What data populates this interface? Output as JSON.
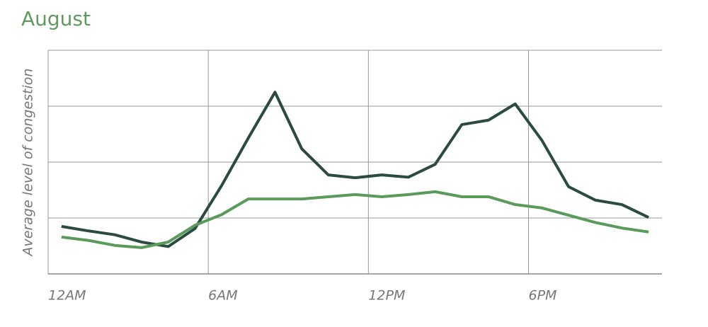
{
  "chart_data": {
    "type": "line",
    "title": "August",
    "y_label": "Average level of congestion",
    "x": [
      0.5,
      1.5,
      2.5,
      3.5,
      4.5,
      5.5,
      6.5,
      7.5,
      8.5,
      9.5,
      10.5,
      11.5,
      12.5,
      13.5,
      14.5,
      15.5,
      16.5,
      17.5,
      18.5,
      19.5,
      20.5,
      21.5,
      22.5
    ],
    "series": [
      {
        "color": "#2b4a42",
        "values": [
          0.85,
          0.77,
          0.7,
          0.57,
          0.49,
          0.81,
          1.58,
          2.43,
          3.25,
          2.24,
          1.77,
          1.72,
          1.77,
          1.73,
          1.96,
          2.67,
          2.75,
          3.04,
          2.39,
          1.56,
          1.32,
          1.24,
          1.01
        ]
      },
      {
        "color": "#5a9a5a",
        "values": [
          0.66,
          0.6,
          0.51,
          0.47,
          0.57,
          0.87,
          1.06,
          1.34,
          1.34,
          1.34,
          1.38,
          1.42,
          1.38,
          1.42,
          1.47,
          1.38,
          1.38,
          1.24,
          1.18,
          1.05,
          0.92,
          0.82,
          0.75
        ]
      }
    ],
    "xlim": [
      0,
      23
    ],
    "xticks": [
      {
        "value": 0,
        "label": "12AM"
      },
      {
        "value": 6,
        "label": "6AM"
      },
      {
        "value": 12,
        "label": "12PM"
      },
      {
        "value": 18,
        "label": "6PM"
      }
    ],
    "ylim": [
      0,
      4
    ],
    "yticks": [
      1,
      2,
      3,
      4
    ],
    "grid": true
  }
}
